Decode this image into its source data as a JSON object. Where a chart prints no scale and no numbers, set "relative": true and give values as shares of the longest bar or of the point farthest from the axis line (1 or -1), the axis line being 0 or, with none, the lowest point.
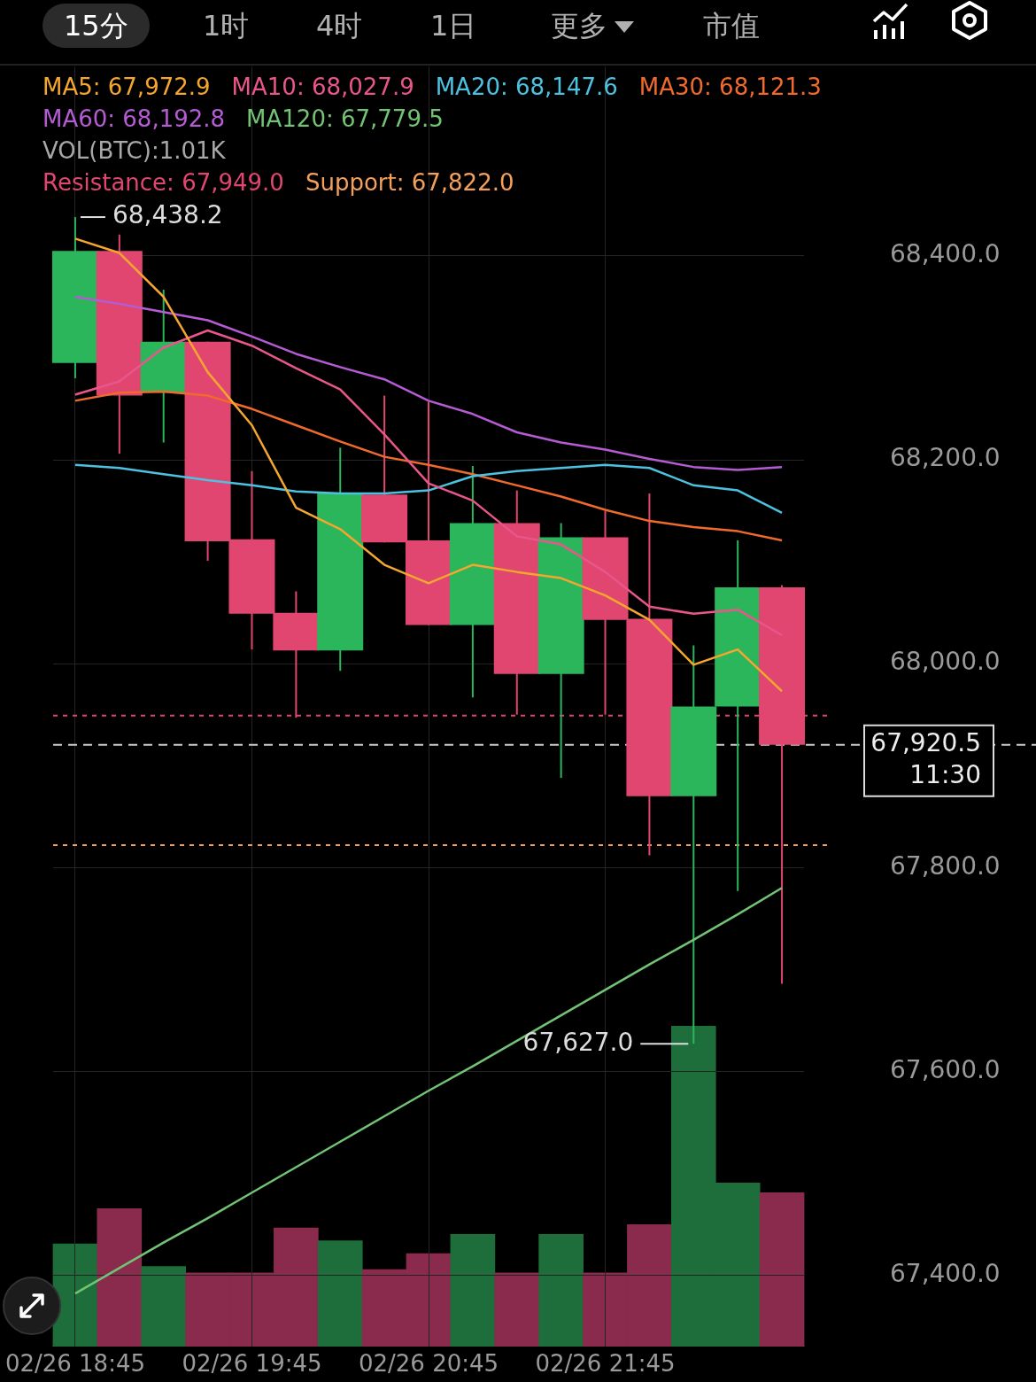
{
  "chart_data": [
    {
      "type": "candlestick",
      "categories": [
        "02/26 18:45",
        null,
        null,
        null,
        "02/26 19:45",
        null,
        null,
        null,
        "02/26 20:45",
        null,
        null,
        null,
        "02/26 21:45",
        null,
        null,
        null,
        null
      ],
      "ohlc": [
        [
          68295,
          68438.2,
          68280,
          68405
        ],
        [
          68405,
          68421,
          68206,
          68263
        ],
        [
          68266,
          68367,
          68217,
          68316
        ],
        [
          68316,
          68316,
          68101,
          68120
        ],
        [
          68122,
          68189,
          68014,
          68049
        ],
        [
          68050,
          68071,
          67947,
          68013
        ],
        [
          68013,
          68212,
          67993,
          68168
        ],
        [
          68166,
          68263,
          68119,
          68119
        ],
        [
          68121,
          68257,
          68038,
          68038
        ],
        [
          68038,
          68194,
          67967,
          68138
        ],
        [
          68138,
          68170,
          67950,
          67990
        ],
        [
          67990,
          68138,
          67888,
          68124
        ],
        [
          68124,
          68150,
          67950,
          68043
        ],
        [
          68044,
          68167,
          67812,
          67870
        ],
        [
          67870,
          68018,
          67627,
          67958
        ],
        [
          67958,
          68121,
          67777,
          68075
        ],
        [
          68075,
          68077,
          67686,
          67920.5
        ]
      ],
      "colors": [
        "#2cb65c",
        "#e0466f",
        "#2cb65c",
        "#e0466f",
        "#e0466f",
        "#e0466f",
        "#2cb65c",
        "#e0466f",
        "#e0466f",
        "#2cb65c",
        "#e0466f",
        "#2cb65c",
        "#e0466f",
        "#e0466f",
        "#2cb65c",
        "#2cb65c",
        "#e0466f"
      ],
      "series": [
        {
          "type": "line",
          "name": "MA5: 67,972.9",
          "color": "#f5a62e",
          "values": [
            68417,
            68403,
            68360,
            68286,
            68234,
            68153,
            68132,
            68097,
            68079,
            68097,
            68090,
            68084,
            68067,
            68043,
            67999,
            68014,
            67973
          ]
        },
        {
          "type": "line",
          "name": "MA10: 68,027.9",
          "color": "#e8568c",
          "values": [
            68264,
            68277,
            68310,
            68327,
            68312,
            68290,
            68269,
            68225,
            68177,
            68160,
            68125,
            68117,
            68090,
            68056,
            68049,
            68053,
            68028
          ]
        },
        {
          "type": "line",
          "name": "MA20: 68,147.6",
          "color": "#4cc2e0",
          "values": [
            68195,
            68192,
            68186,
            68180,
            68175,
            68169,
            68167,
            68167,
            68170,
            68184,
            68189,
            68192,
            68195,
            68192,
            68175,
            68170,
            68148
          ]
        },
        {
          "type": "line",
          "name": "MA30: 68,121.3",
          "color": "#ef6a2c",
          "values": [
            68258,
            68266,
            68267,
            68263,
            68250,
            68234,
            68218,
            68203,
            68195,
            68186,
            68175,
            68164,
            68151,
            68140,
            68134,
            68130,
            68121
          ]
        },
        {
          "type": "line",
          "name": "MA60: 68,192.8",
          "color": "#b55bd3",
          "values": [
            68360,
            68353,
            68345,
            68337,
            68321,
            68304,
            68291,
            68279,
            68258,
            68245,
            68227,
            68217,
            68210,
            68201,
            68193,
            68190,
            68193
          ]
        },
        {
          "type": "line",
          "name": "MA120: 67,779.5",
          "color": "#72c474",
          "values": [
            67382,
            67407,
            67432,
            67456,
            67481,
            67506,
            67531,
            67556,
            67581,
            67605,
            67630,
            67655,
            67680,
            67705,
            67729,
            67754,
            67780
          ]
        }
      ],
      "ylim": [
        67330,
        68586
      ],
      "yticks": [
        {
          "value": 67400,
          "label": "67,400.0"
        },
        {
          "value": 67600,
          "label": "67,600.0"
        },
        {
          "value": 67800,
          "label": "67,800.0"
        },
        {
          "value": 68000,
          "label": "68,000.0"
        },
        {
          "value": 68200,
          "label": "68,200.0"
        },
        {
          "value": 68400,
          "label": "68,400.0"
        }
      ],
      "grid": true,
      "legend": "top left",
      "ref_lines": [
        {
          "axis": "y",
          "value": 67949,
          "label": "Resistance: 67,949.0",
          "color": "#e0466f",
          "line_style": "dotted"
        },
        {
          "axis": "y",
          "value": 67822,
          "label": "Support: 67,822.0",
          "color": "#f5a05a",
          "line_style": "dotted"
        },
        {
          "axis": "y",
          "value": 67920.5,
          "color": "#cccccc",
          "line_style": "dashed"
        }
      ],
      "annotations": [
        "15分",
        "1时",
        "4时",
        "1日",
        "更多",
        "市值",
        "67,920.5",
        "11:30",
        "68,438.2",
        "67,627.0"
      ]
    },
    {
      "type": "bar",
      "relative": true,
      "categories": [
        null,
        null,
        null,
        null,
        null,
        null,
        null,
        null,
        null,
        null,
        null,
        null,
        null,
        null,
        null,
        null,
        null
      ],
      "values": [
        0.32,
        0.43,
        0.25,
        0.23,
        0.23,
        0.37,
        0.33,
        0.24,
        0.29,
        0.35,
        0.23,
        0.35,
        0.23,
        0.38,
        1,
        0.51,
        0.48
      ],
      "colors": [
        "#1d6e3a",
        "#8a2a4c",
        "#1d6e3a",
        "#8a2a4c",
        "#8a2a4c",
        "#8a2a4c",
        "#1d6e3a",
        "#8a2a4c",
        "#8a2a4c",
        "#1d6e3a",
        "#8a2a4c",
        "#1d6e3a",
        "#8a2a4c",
        "#8a2a4c",
        "#1d6e3a",
        "#1d6e3a",
        "#8a2a4c"
      ],
      "annotations": [
        "VOL(BTC):1.01K"
      ]
    }
  ]
}
